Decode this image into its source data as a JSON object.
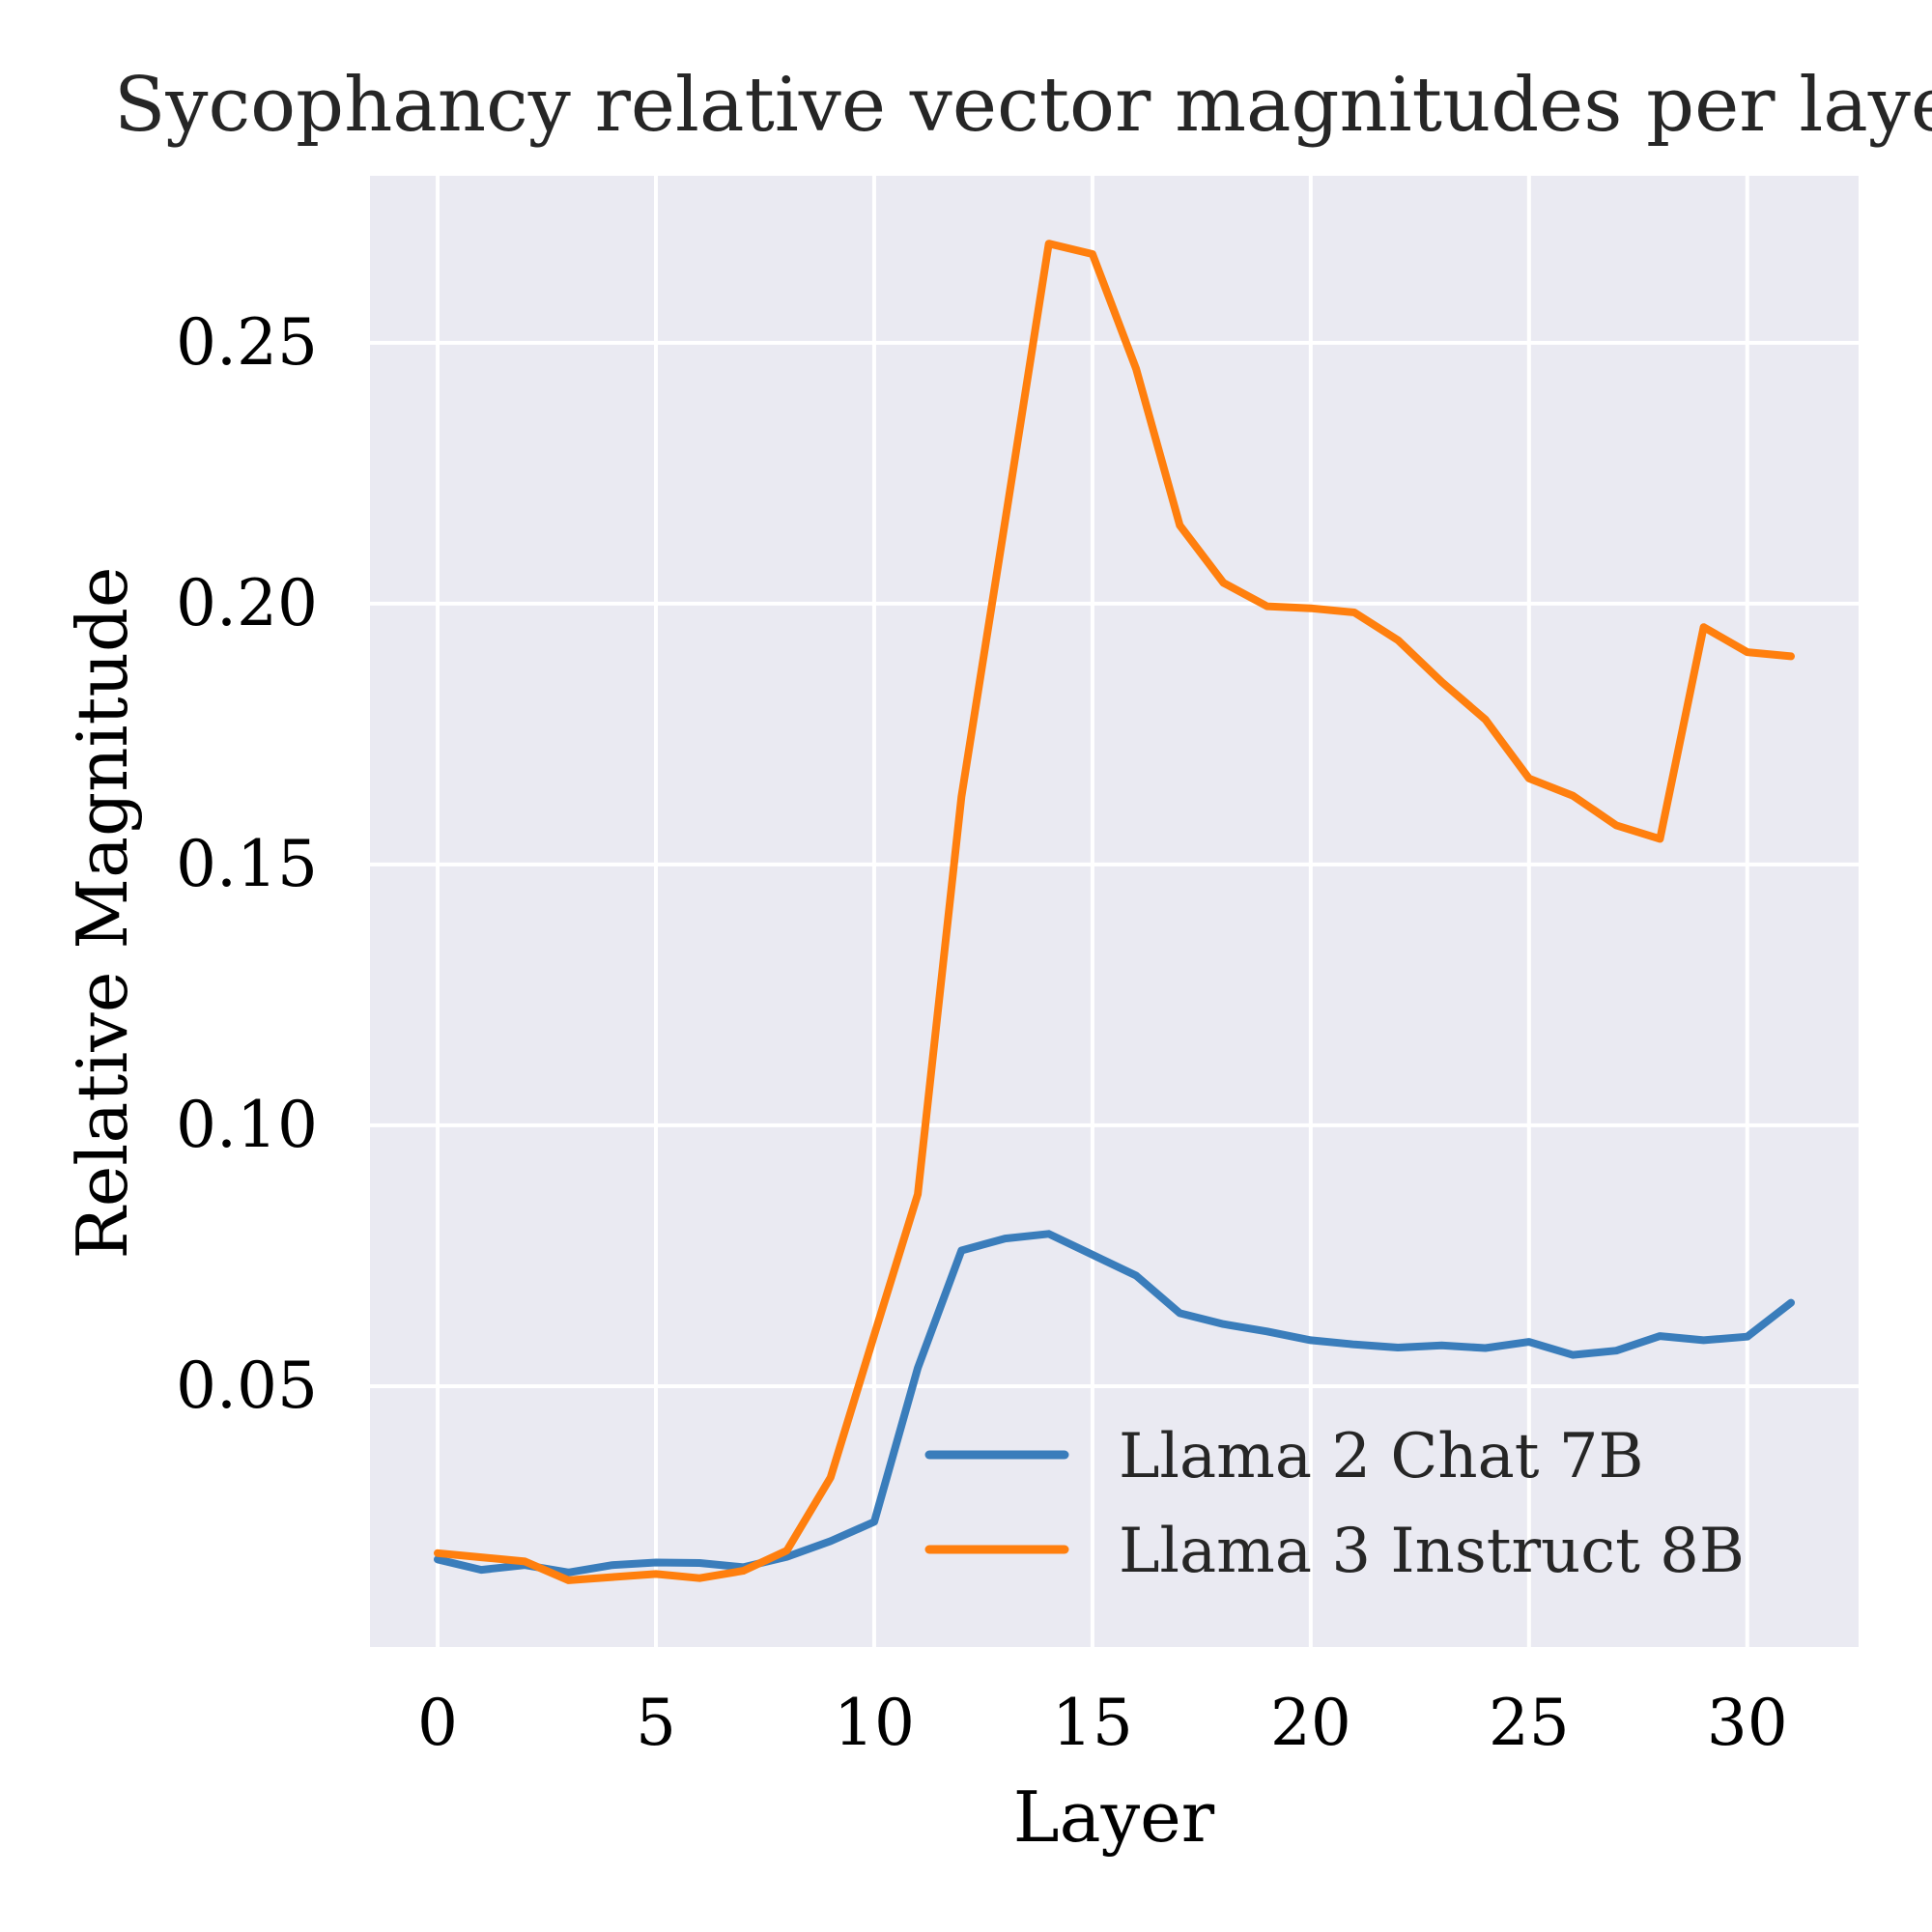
{
  "chart_data": {
    "type": "line",
    "title": "Sycophancy relative vector magnitudes per layer",
    "xlabel": "Layer",
    "ylabel": "Relative Magnitude",
    "xlim": [
      -1.55,
      32.55
    ],
    "ylim": [
      0.0,
      0.282
    ],
    "xticks": [
      0,
      5,
      10,
      15,
      20,
      25,
      30
    ],
    "yticks": [
      0.05,
      0.1,
      0.15,
      0.2,
      0.25
    ],
    "ytick_labels": [
      "0.05",
      "0.10",
      "0.15",
      "0.20",
      "0.25"
    ],
    "grid": true,
    "legend_position": "lower-right",
    "background": "#eaeaf2",
    "x": [
      0,
      1,
      2,
      3,
      4,
      5,
      6,
      7,
      8,
      9,
      10,
      11,
      12,
      13,
      14,
      15,
      16,
      17,
      18,
      19,
      20,
      21,
      22,
      23,
      24,
      25,
      26,
      27,
      28,
      29,
      30,
      31
    ],
    "series": [
      {
        "name": "Llama 2 Chat 7B",
        "color": "#3a7dbb",
        "values": [
          0.0168,
          0.0148,
          0.0157,
          0.0143,
          0.0157,
          0.0162,
          0.0161,
          0.0153,
          0.0173,
          0.0203,
          0.024,
          0.0535,
          0.076,
          0.0783,
          0.0792,
          0.0752,
          0.0712,
          0.064,
          0.0619,
          0.0605,
          0.0588,
          0.058,
          0.0574,
          0.0578,
          0.0573,
          0.0585,
          0.056,
          0.0568,
          0.0596,
          0.0588,
          0.0595,
          0.066
        ]
      },
      {
        "name": "Llama 3 Instruct 8B",
        "color": "#ff7f0e",
        "values": [
          0.018,
          0.0172,
          0.0164,
          0.0128,
          0.0134,
          0.014,
          0.0132,
          0.0146,
          0.0185,
          0.0325,
          0.0598,
          0.0868,
          0.163,
          0.2158,
          0.269,
          0.267,
          0.245,
          0.215,
          0.204,
          0.1995,
          0.1991,
          0.1983,
          0.193,
          0.185,
          0.1778,
          0.1665,
          0.1632,
          0.1575,
          0.1549,
          0.1955,
          0.1907,
          0.1899
        ]
      }
    ]
  }
}
